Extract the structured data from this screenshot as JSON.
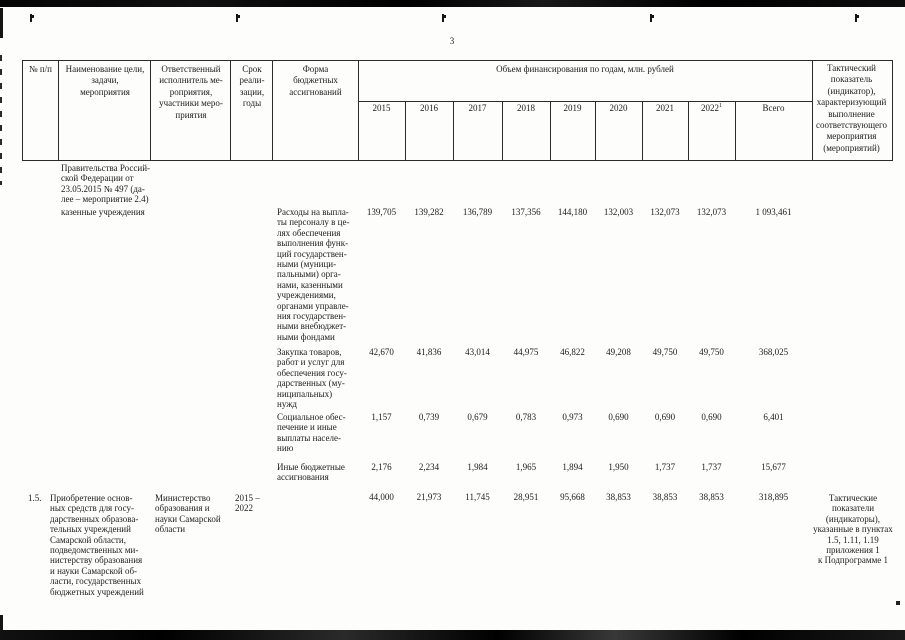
{
  "page": {
    "number": "3"
  },
  "table": {
    "header": {
      "col_num": "№ п/п",
      "col_name": "Наименование цели,\nзадачи,\nмероприятия",
      "col_executor": "Ответственный\nисполнитель ме-\nроприятия,\nучастники меро-\nприятия",
      "col_period": "Срок\nреали-\nзации,\nгоды",
      "col_form": "Форма\nбюджетных\nассигнований",
      "col_funding_group": "Объем финансирования по годам, млн. рублей",
      "years": [
        "2015",
        "2016",
        "2017",
        "2018",
        "2019",
        "2020",
        "2021",
        "2022",
        "Всего"
      ],
      "year_2022_footnote": "1",
      "col_indicator": "Тактический\nпоказатель\n(индикатор),\nхарактеризующий\nвыполнение\nсоответствующего\nмероприятия\n(мероприятий)"
    },
    "body": {
      "continuation": {
        "name_text": "Правительства Россий-\nской Федерации от\n23.05.2015 № 497 (да-\nлее – мероприятие 2.4)",
        "participants": "казенные учреждения",
        "form_rows": [
          {
            "form": "Расходы на выпла-\nты персоналу в це-\nлях обеспечения\nвыполнения функ-\nций государствен-\nными (муници-\nпальными) орга-\nнами, казенными\nучреждениями,\nорганами управле-\nния государствен-\nными внебюджет-\nными фондами",
            "values": [
              "139,705",
              "139,282",
              "136,789",
              "137,356",
              "144,180",
              "132,003",
              "132,073",
              "132,073",
              "1 093,461"
            ]
          },
          {
            "form": "Закупка товаров,\nработ и услуг для\nобеспечения госу-\nдарственных (му-\nниципальных)\nнужд",
            "values": [
              "42,670",
              "41,836",
              "43,014",
              "44,975",
              "46,822",
              "49,208",
              "49,750",
              "49,750",
              "368,025"
            ]
          },
          {
            "form": "Социальное обес-\nпечение и иные\nвыплаты населе-\nнию",
            "values": [
              "1,157",
              "0,739",
              "0,679",
              "0,783",
              "0,973",
              "0,690",
              "0,690",
              "0,690",
              "6,401"
            ]
          },
          {
            "form": "Иные бюджетные\nассигнования",
            "values": [
              "2,176",
              "2,234",
              "1,984",
              "1,965",
              "1,894",
              "1,950",
              "1,737",
              "1,737",
              "15,677"
            ]
          }
        ]
      },
      "row_1_5": {
        "num": "1.5.",
        "name": "Приобретение основ-\nных средств для госу-\nдарственных образова-\nтельных учреждений\nСамарской области,\nподведомственных ми-\nнистерству образования\nи науки Самарской об-\nласти, государственных\nбюджетных учреждений",
        "executor": "Министерство\nобразования и\nнауки Самарской\nобласти",
        "period": "2015 –\n2022",
        "values": [
          "44,000",
          "21,973",
          "11,745",
          "28,951",
          "95,668",
          "38,853",
          "38,853",
          "38,853",
          "318,895"
        ],
        "indicator": "Тактические\nпоказатели\n(индикаторы),\nуказанные в пунктах\n1.5, 1.11, 1.19\nприложения 1\nк Подпрограмме 1"
      }
    }
  }
}
